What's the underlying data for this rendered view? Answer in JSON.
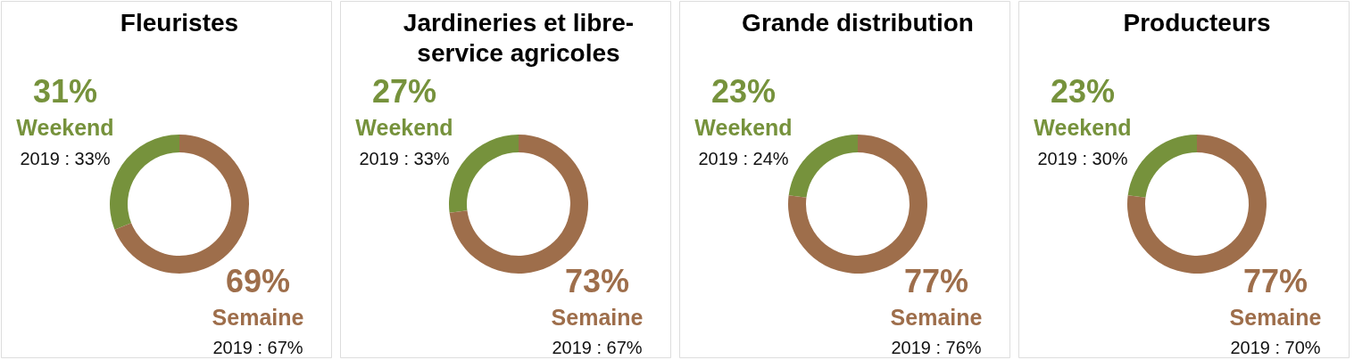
{
  "chart_data": [
    {
      "type": "donut",
      "title": "Fleuristes",
      "categories": [
        "Weekend",
        "Semaine"
      ],
      "values": [
        31,
        69
      ],
      "colors": [
        "#76923c",
        "#9e6e4b"
      ],
      "value_labels": [
        "31%",
        "69%"
      ],
      "annotations": [
        "2019 : 33%",
        "2019 : 67%"
      ],
      "legend": false
    },
    {
      "type": "donut",
      "title": "Jardineries et libre-\nservice agricoles",
      "categories": [
        "Weekend",
        "Semaine"
      ],
      "values": [
        27,
        73
      ],
      "colors": [
        "#76923c",
        "#9e6e4b"
      ],
      "value_labels": [
        "27%",
        "73%"
      ],
      "annotations": [
        "2019 : 33%",
        "2019 : 67%"
      ],
      "legend": false
    },
    {
      "type": "donut",
      "title": "Grande distribution",
      "categories": [
        "Weekend",
        "Semaine"
      ],
      "values": [
        23,
        77
      ],
      "colors": [
        "#76923c",
        "#9e6e4b"
      ],
      "value_labels": [
        "23%",
        "77%"
      ],
      "annotations": [
        "2019 : 24%",
        "2019 : 76%"
      ],
      "legend": false
    },
    {
      "type": "donut",
      "title": "Producteurs",
      "categories": [
        "Weekend",
        "Semaine"
      ],
      "values": [
        23,
        77
      ],
      "colors": [
        "#76923c",
        "#9e6e4b"
      ],
      "value_labels": [
        "23%",
        "77%"
      ],
      "annotations": [
        "2019 : 30%",
        "2019 : 70%"
      ],
      "legend": false
    }
  ]
}
